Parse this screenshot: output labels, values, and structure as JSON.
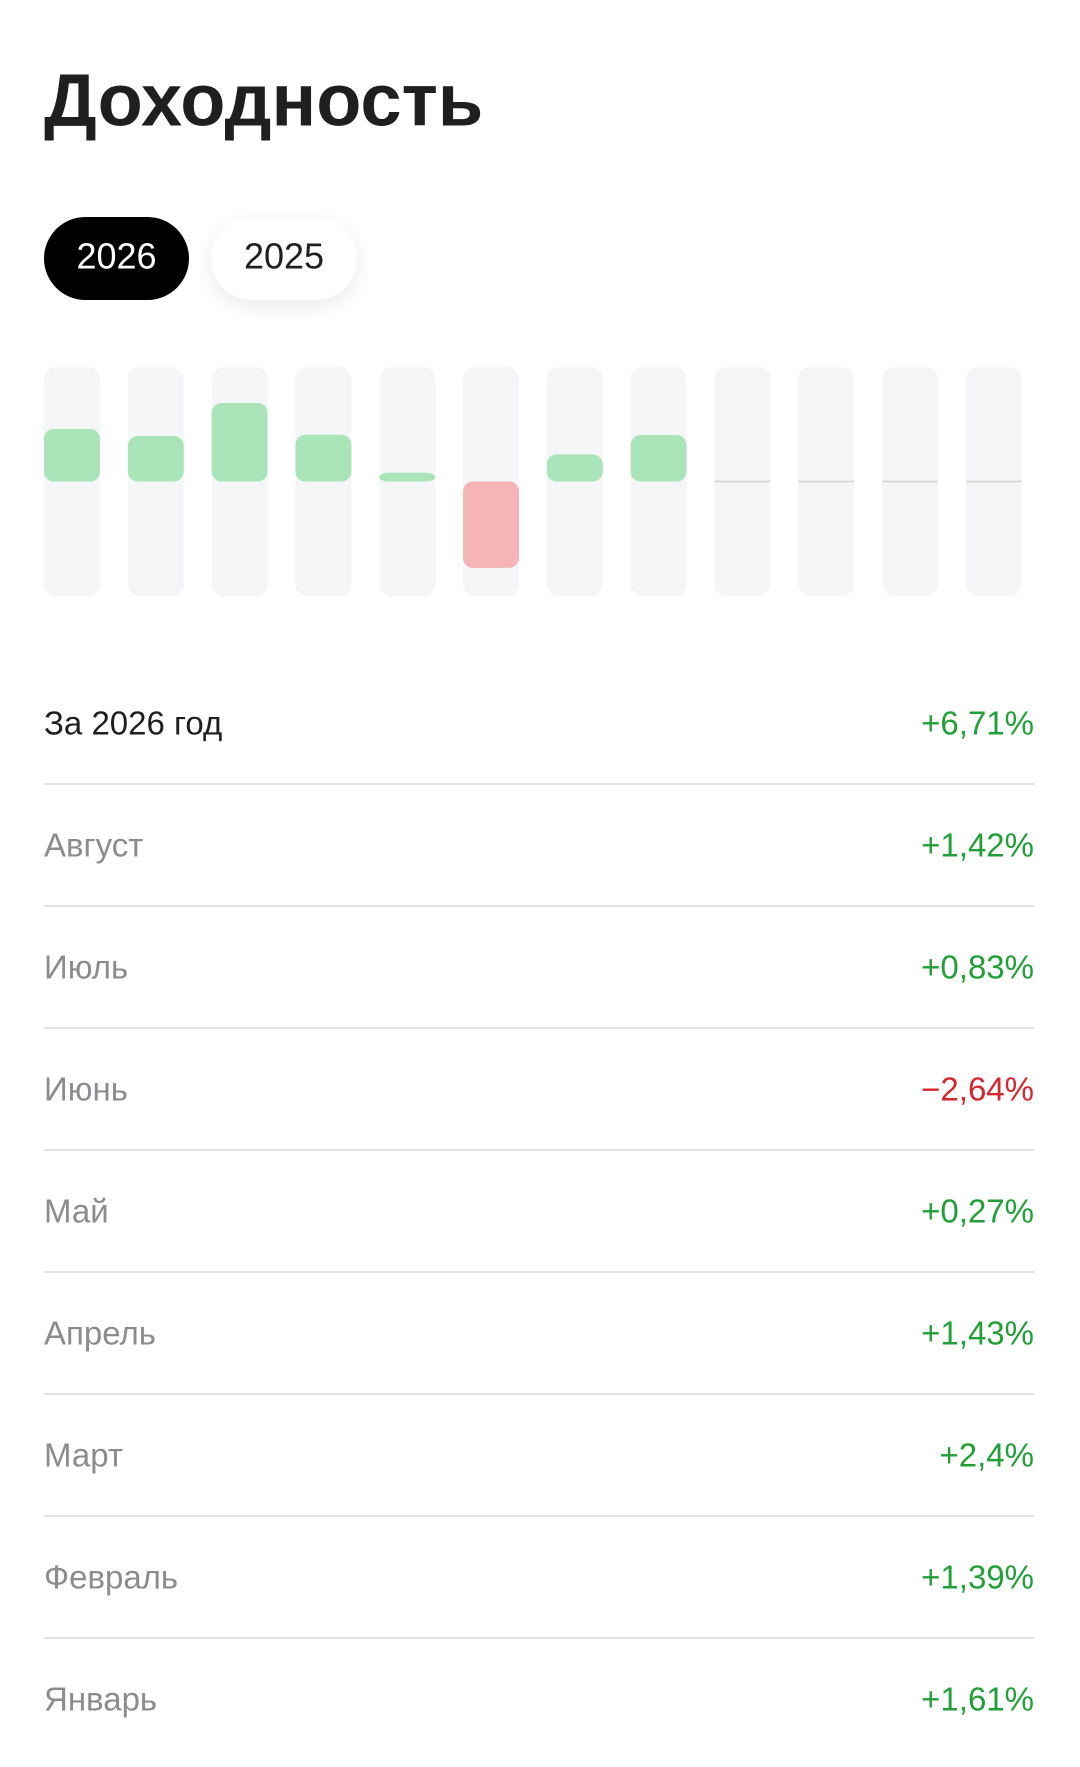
{
  "title": "Доходность",
  "tabs": [
    "2026",
    "2025"
  ],
  "summary": {
    "label": "За 2026 год",
    "value": "+6,71%"
  },
  "chart_data": {
    "type": "bar",
    "categories": [
      "Январь",
      "Февраль",
      "Март",
      "Апрель",
      "Май",
      "Июнь",
      "Июль",
      "Август",
      null,
      null,
      null,
      null
    ],
    "values": [
      1.61,
      1.39,
      2.4,
      1.43,
      0.27,
      -2.64,
      0.83,
      1.42,
      null,
      null,
      null,
      null
    ],
    "value_labels": [
      "+1,61%",
      "+1,39%",
      "+2,4%",
      "+1,43%",
      "+0,27%",
      "−2,64%",
      "+0,83%",
      "+1,42%",
      null,
      null,
      null,
      null
    ],
    "ylim": [
      -3.5,
      3.5
    ],
    "positive_color": "#a9e5b9",
    "negative_color": "#f5b5b6",
    "positive_text_color": "#21a038",
    "negative_text_color": "#d7262c"
  }
}
